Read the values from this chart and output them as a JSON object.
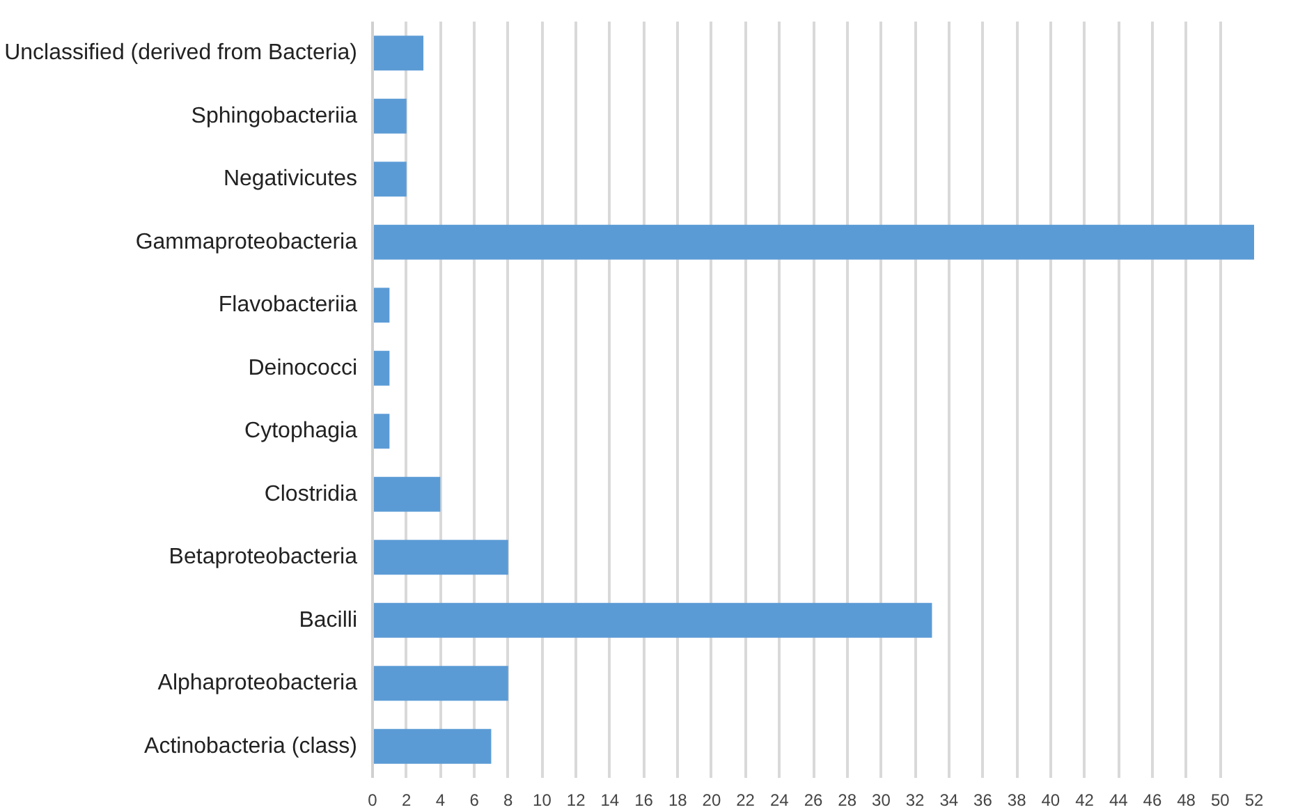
{
  "chart_data": {
    "type": "bar",
    "orientation": "horizontal",
    "categories": [
      "Unclassified (derived from Bacteria)",
      "Sphingobacteriia",
      "Negativicutes",
      "Gammaproteobacteria",
      "Flavobacteriia",
      "Deinococci",
      "Cytophagia",
      "Clostridia",
      "Betaproteobacteria",
      "Bacilli",
      "Alphaproteobacteria",
      "Actinobacteria (class)"
    ],
    "values": [
      3,
      2,
      2,
      52,
      1,
      1,
      1,
      4,
      8,
      33,
      8,
      7
    ],
    "color": "#5b9bd5",
    "xlim": [
      0,
      52
    ],
    "xticks": [
      0,
      2,
      4,
      6,
      8,
      10,
      12,
      14,
      16,
      18,
      20,
      22,
      24,
      26,
      28,
      30,
      32,
      34,
      36,
      38,
      40,
      42,
      44,
      46,
      48,
      50,
      52
    ],
    "grid": "x"
  }
}
